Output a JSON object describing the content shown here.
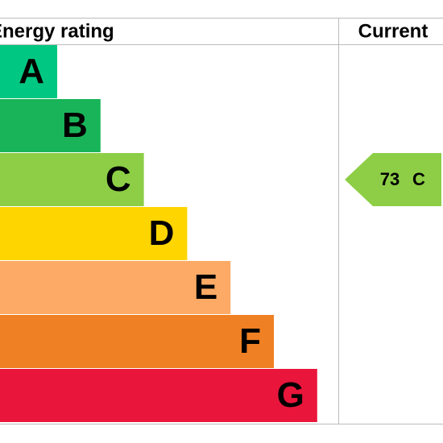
{
  "header": {
    "title": "Energy rating",
    "current": "Current"
  },
  "bands": [
    {
      "letter": "A",
      "color": "#00c781"
    },
    {
      "letter": "B",
      "color": "#19b459"
    },
    {
      "letter": "C",
      "color": "#8dce46"
    },
    {
      "letter": "D",
      "color": "#ffd500"
    },
    {
      "letter": "E",
      "color": "#fcaa65"
    },
    {
      "letter": "F",
      "color": "#ef8023"
    },
    {
      "letter": "G",
      "color": "#e9153b"
    }
  ],
  "current": {
    "score": 73,
    "band": "C"
  }
}
